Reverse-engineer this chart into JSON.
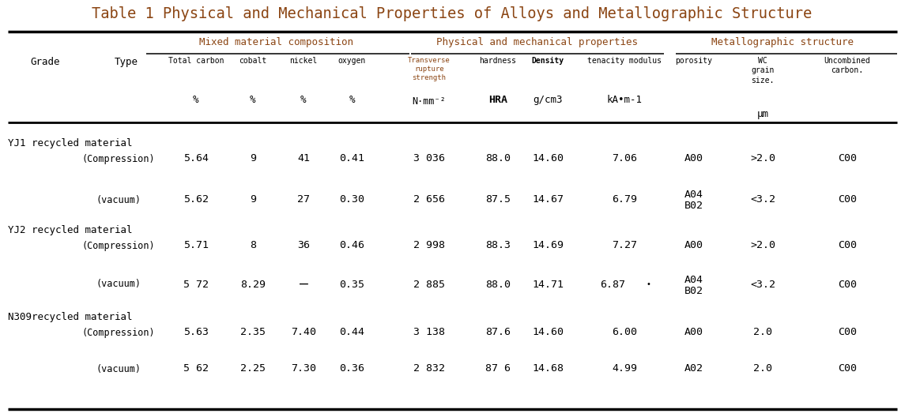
{
  "title": "Table 1 Physical and Mechanical Properties of Alloys and Metallographic Structure",
  "title_color": "#8B4513",
  "title_fontsize": 13.5,
  "background_color": "#FFFFFF",
  "section_headers": {
    "mixed": "Mixed material composition",
    "physical": "Physical and mechanical properties",
    "metallographic": "Metallographic structure"
  },
  "rows": [
    {
      "grade": "YJ1 recycled material",
      "type": "(Compression)",
      "total_carbon": "5.64",
      "cobalt": "9",
      "nickel": "41",
      "oxygen": "0.41",
      "transverse": "3 036",
      "hardness": "88.0",
      "density": "14.60",
      "tenacity": "7.06",
      "porosity": "A00",
      "porosity2": "",
      "wc_grain": ">2.0",
      "uncombined": "C00"
    },
    {
      "grade": "",
      "type": "(vacuum)",
      "total_carbon": "5.62",
      "cobalt": "9",
      "nickel": "27",
      "oxygen": "0.30",
      "transverse": "2 656",
      "hardness": "87.5",
      "density": "14.67",
      "tenacity": "6.79",
      "porosity": "A04",
      "porosity2": "B02",
      "wc_grain": "<3.2",
      "uncombined": "C00"
    },
    {
      "grade": "YJ2 recycled material",
      "type": "(Compression)",
      "total_carbon": "5.71",
      "cobalt": "8",
      "nickel": "36",
      "oxygen": "0.46",
      "transverse": "2 998",
      "hardness": "88.3",
      "density": "14.69",
      "tenacity": "7.27",
      "porosity": "A00",
      "porosity2": "",
      "wc_grain": ">2.0",
      "uncombined": "C00"
    },
    {
      "grade": "",
      "type": "(vacuum)",
      "total_carbon": "5 72",
      "cobalt": "8.29",
      "nickel": "—",
      "oxygen": "0.35",
      "transverse": "2 885",
      "hardness": "88.0",
      "density": "14.71",
      "tenacity": "6.87",
      "porosity": "A04",
      "porosity2": "B02",
      "wc_grain": "<3.2",
      "uncombined": "C00"
    },
    {
      "grade": "N309recycled material",
      "type": "(Compression)",
      "total_carbon": "5.63",
      "cobalt": "2.35",
      "nickel": "7.40",
      "oxygen": "0.44",
      "transverse": "3 138",
      "hardness": "87.6",
      "density": "14.60",
      "tenacity": "6.00",
      "porosity": "A00",
      "porosity2": "",
      "wc_grain": "2.0",
      "uncombined": "C00"
    },
    {
      "grade": "",
      "type": "(vacuum)",
      "total_carbon": "5 62",
      "cobalt": "2.25",
      "nickel": "7.30",
      "oxygen": "0.36",
      "transverse": "2 832",
      "hardness": "87 6",
      "density": "14.68",
      "tenacity": "4.99",
      "porosity": "A02",
      "porosity2": "",
      "wc_grain": "2.0",
      "uncombined": "C00"
    }
  ],
  "emdash": "—",
  "nickel_emdash_rows": [
    0,
    1,
    2,
    3
  ],
  "text_color": "#000000",
  "header_color": "#8B4513",
  "subheader_color": "#8B4513",
  "data_color": "#000000"
}
